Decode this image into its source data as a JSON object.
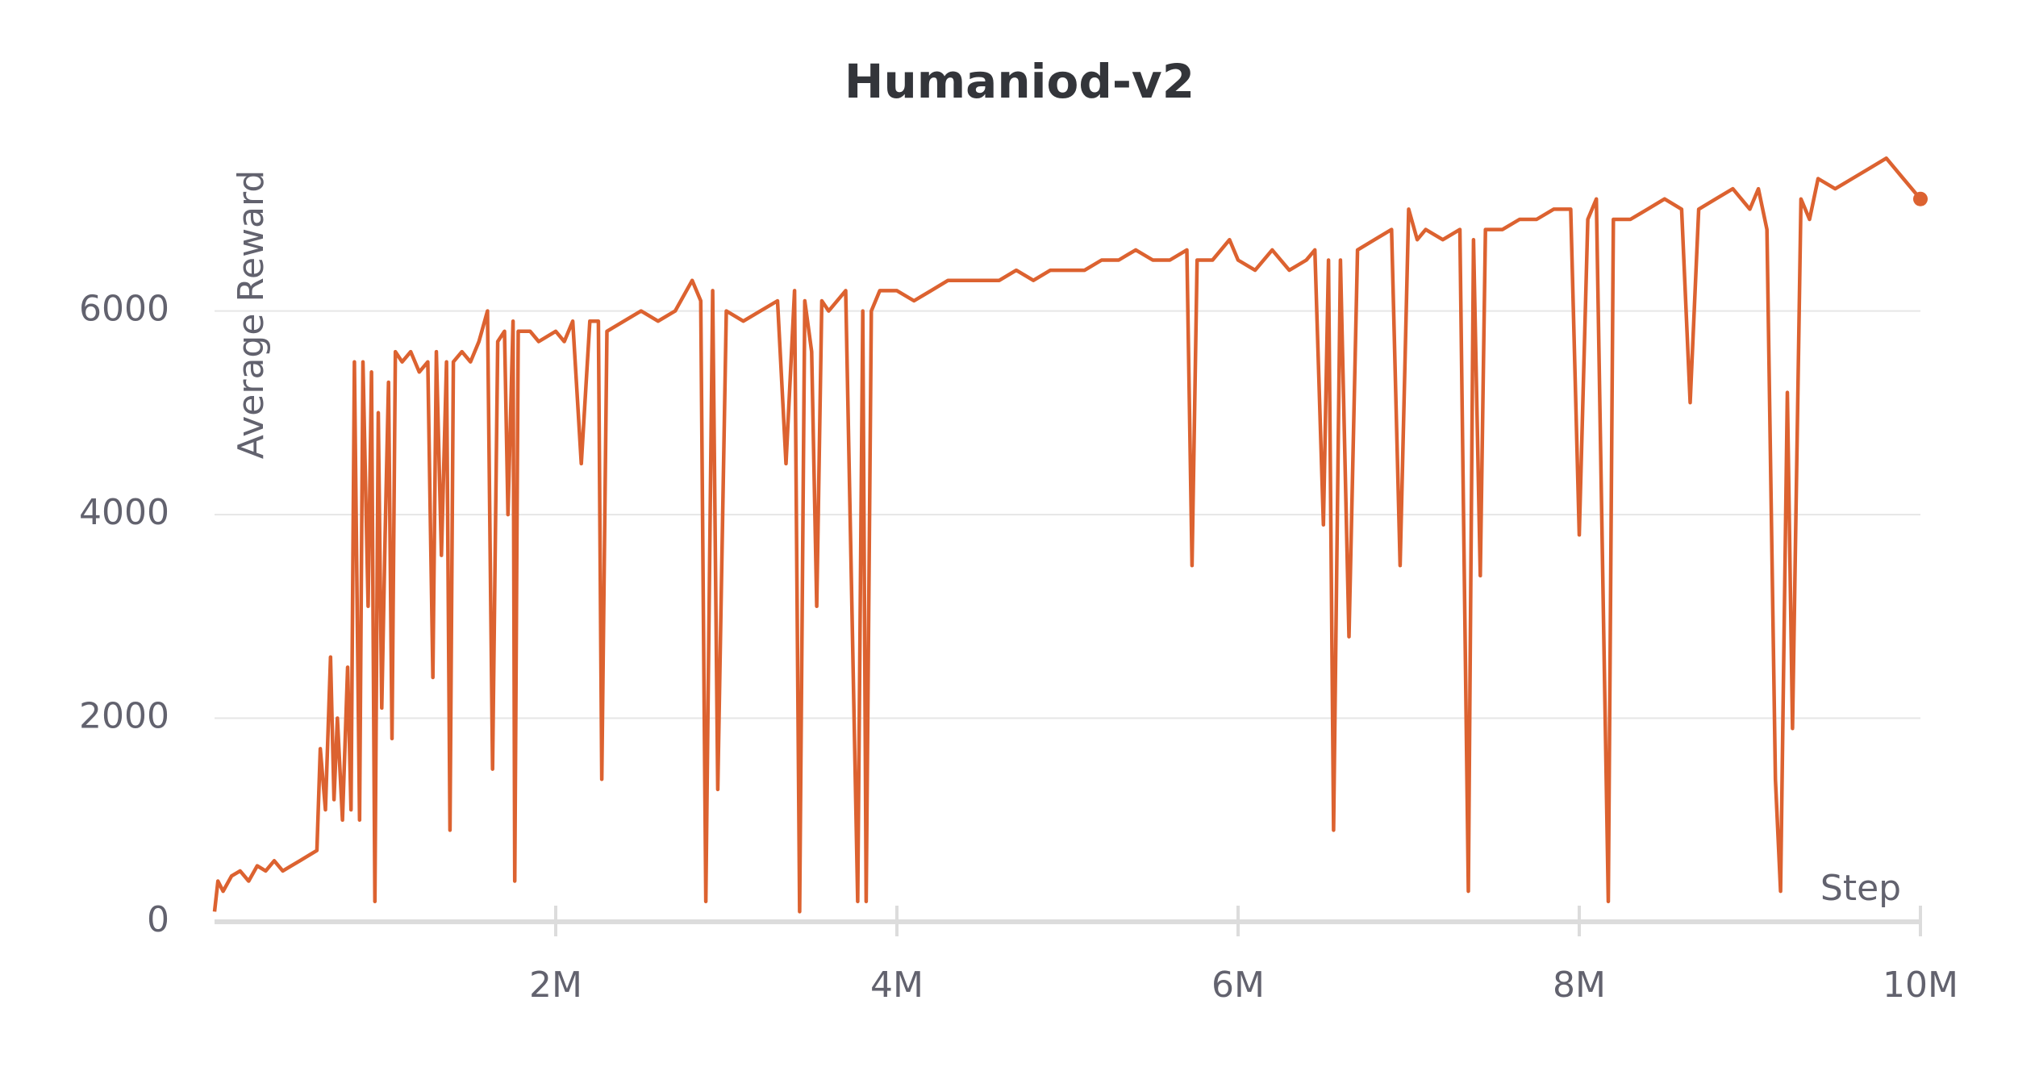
{
  "chart_data": {
    "type": "line",
    "title": "Humaniod-v2",
    "x_label": "Step",
    "y_label": "Average Reward",
    "xlim": [
      0,
      10000000
    ],
    "ylim": [
      0,
      7700
    ],
    "xticks": [
      {
        "value": 2000000,
        "label": "2M"
      },
      {
        "value": 4000000,
        "label": "4M"
      },
      {
        "value": 6000000,
        "label": "6M"
      },
      {
        "value": 8000000,
        "label": "8M"
      },
      {
        "value": 10000000,
        "label": "10M"
      }
    ],
    "yticks": [
      0,
      2000,
      4000,
      6000
    ],
    "grid": true,
    "series": [
      {
        "color": "#dc6230",
        "x": [
          0,
          20000,
          50000,
          100000,
          150000,
          200000,
          250000,
          300000,
          350000,
          400000,
          450000,
          500000,
          550000,
          600000,
          620000,
          650000,
          680000,
          700000,
          720000,
          750000,
          780000,
          800000,
          820000,
          850000,
          870000,
          900000,
          920000,
          940000,
          960000,
          980000,
          1000000,
          1020000,
          1040000,
          1060000,
          1100000,
          1150000,
          1200000,
          1250000,
          1280000,
          1300000,
          1330000,
          1360000,
          1380000,
          1400000,
          1450000,
          1500000,
          1550000,
          1600000,
          1630000,
          1660000,
          1700000,
          1720000,
          1750000,
          1760000,
          1780000,
          1850000,
          1900000,
          2000000,
          2050000,
          2100000,
          2150000,
          2200000,
          2250000,
          2270000,
          2300000,
          2400000,
          2500000,
          2600000,
          2700000,
          2800000,
          2850000,
          2880000,
          2920000,
          2950000,
          3000000,
          3100000,
          3200000,
          3300000,
          3350000,
          3400000,
          3430000,
          3460000,
          3500000,
          3530000,
          3560000,
          3600000,
          3700000,
          3770000,
          3800000,
          3820000,
          3850000,
          3900000,
          4000000,
          4100000,
          4200000,
          4300000,
          4400000,
          4500000,
          4600000,
          4700000,
          4800000,
          4900000,
          5000000,
          5100000,
          5200000,
          5300000,
          5400000,
          5500000,
          5600000,
          5700000,
          5730000,
          5760000,
          5850000,
          5950000,
          6000000,
          6100000,
          6200000,
          6300000,
          6400000,
          6450000,
          6500000,
          6530000,
          6560000,
          6600000,
          6650000,
          6700000,
          6800000,
          6900000,
          6950000,
          7000000,
          7050000,
          7100000,
          7200000,
          7300000,
          7350000,
          7380000,
          7420000,
          7450000,
          7550000,
          7650000,
          7750000,
          7850000,
          7950000,
          8000000,
          8050000,
          8100000,
          8170000,
          8200000,
          8300000,
          8400000,
          8500000,
          8600000,
          8650000,
          8700000,
          8800000,
          8900000,
          9000000,
          9050000,
          9100000,
          9150000,
          9180000,
          9220000,
          9250000,
          9300000,
          9350000,
          9400000,
          9500000,
          9600000,
          9700000,
          9800000,
          9900000,
          10000000
        ],
        "values": [
          100,
          400,
          300,
          450,
          500,
          400,
          550,
          500,
          600,
          500,
          550,
          600,
          650,
          700,
          1700,
          1100,
          2600,
          1200,
          2000,
          1000,
          2500,
          1100,
          5500,
          1000,
          5500,
          3100,
          5400,
          200,
          5000,
          2100,
          3800,
          5300,
          1800,
          5600,
          5500,
          5600,
          5400,
          5500,
          2400,
          5600,
          3600,
          5500,
          900,
          5500,
          5600,
          5500,
          5700,
          6000,
          1500,
          5700,
          5800,
          4000,
          5900,
          400,
          5800,
          5800,
          5700,
          5800,
          5700,
          5900,
          4500,
          5900,
          5900,
          1400,
          5800,
          5900,
          6000,
          5900,
          6000,
          6300,
          6100,
          200,
          6200,
          1300,
          6000,
          5900,
          6000,
          6100,
          4500,
          6200,
          100,
          6100,
          5600,
          3100,
          6100,
          6000,
          6200,
          200,
          6000,
          200,
          6000,
          6200,
          6200,
          6100,
          6200,
          6300,
          6300,
          6300,
          6300,
          6400,
          6300,
          6400,
          6400,
          6400,
          6500,
          6500,
          6600,
          6500,
          6500,
          6600,
          3500,
          6500,
          6500,
          6700,
          6500,
          6400,
          6600,
          6400,
          6500,
          6600,
          3900,
          6500,
          900,
          6500,
          2800,
          6600,
          6700,
          6800,
          3500,
          7000,
          6700,
          6800,
          6700,
          6800,
          300,
          6700,
          3400,
          6800,
          6800,
          6900,
          6900,
          7000,
          7000,
          3800,
          6900,
          7100,
          200,
          6900,
          6900,
          7000,
          7100,
          7000,
          5100,
          7000,
          7100,
          7200,
          7000,
          7200,
          6800,
          1400,
          300,
          5200,
          1900,
          7100,
          6900,
          7300,
          7200,
          7300,
          7400,
          7500,
          7300,
          7100
        ]
      }
    ]
  }
}
